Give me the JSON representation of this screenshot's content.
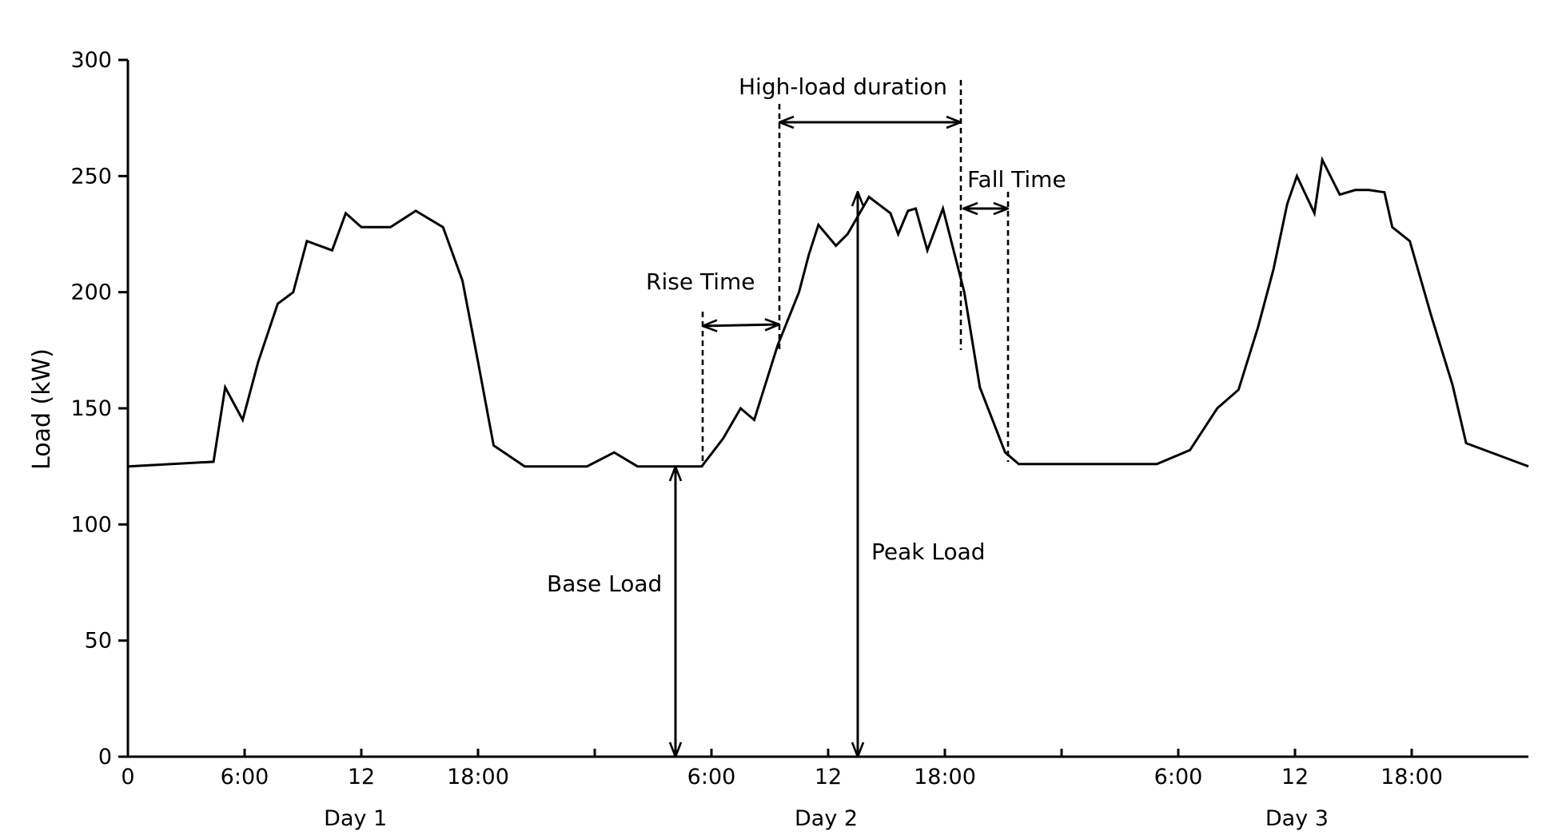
{
  "chart_data": {
    "type": "line",
    "xlabel": "",
    "ylabel": "Load (kW)",
    "ylim": [
      0,
      300
    ],
    "xlim_hours": [
      0,
      72
    ],
    "yticks": [
      "0",
      "50",
      "100",
      "150",
      "200",
      "250",
      "300"
    ],
    "xticks": [
      {
        "hour": 0,
        "label": "0"
      },
      {
        "hour": 6,
        "label": "6:00"
      },
      {
        "hour": 12,
        "label": "12"
      },
      {
        "hour": 18,
        "label": "18:00"
      },
      {
        "hour": 24,
        "label": ""
      },
      {
        "hour": 30,
        "label": "6:00"
      },
      {
        "hour": 36,
        "label": "12"
      },
      {
        "hour": 42,
        "label": "18:00"
      },
      {
        "hour": 48,
        "label": ""
      },
      {
        "hour": 54,
        "label": "6:00"
      },
      {
        "hour": 60,
        "label": "12"
      },
      {
        "hour": 66,
        "label": "18:00"
      }
    ],
    "day_labels": [
      {
        "label": "Day 1",
        "hour": 11.7
      },
      {
        "label": "Day 2",
        "hour": 35.9
      },
      {
        "label": "Day 3",
        "hour": 60.1
      }
    ],
    "series": [
      {
        "x": [
          0,
          4.4,
          5.0,
          5.9,
          6.7,
          7.7,
          8.5,
          9.2,
          10.5,
          11.2,
          12.0,
          13.5,
          14.8,
          16.2,
          17.2,
          18.0,
          18.8,
          20.4,
          23.6,
          25.0,
          26.2,
          29.5,
          30.6,
          31.5,
          32.2,
          33.4,
          34.5,
          35.0,
          35.5,
          36.4,
          37.0,
          38.1,
          39.2,
          39.6,
          40.1,
          40.5,
          41.1,
          41.9,
          43.0,
          43.8,
          45.1,
          45.8,
          52.0,
          52.9,
          54.6,
          56.0,
          57.1,
          58.1,
          58.9,
          59.6,
          60.1,
          61.0,
          61.4,
          62.3,
          63.1,
          63.8,
          64.6,
          65.0,
          65.9,
          67.0,
          68.1,
          68.8,
          72.0
        ],
        "values": [
          125,
          127,
          159,
          145,
          170,
          195,
          200,
          222,
          218,
          234,
          228,
          228,
          235,
          228,
          205,
          170,
          134,
          125,
          125,
          131,
          125,
          125,
          137,
          150,
          145,
          177,
          200,
          216,
          229,
          220,
          225,
          241,
          234,
          225,
          235,
          236,
          218,
          236,
          200,
          159,
          131,
          126,
          126,
          126,
          132,
          150,
          158,
          185,
          210,
          238,
          250,
          234,
          257,
          242,
          244,
          244,
          243,
          228,
          222,
          190,
          160,
          135,
          125
        ]
      }
    ],
    "annotations": {
      "base_load": "Base Load",
      "peak_load": "Peak Load",
      "rise_time": "Rise Time",
      "fall_time": "Fall Time",
      "high_load_duration": "High-load duration"
    }
  }
}
